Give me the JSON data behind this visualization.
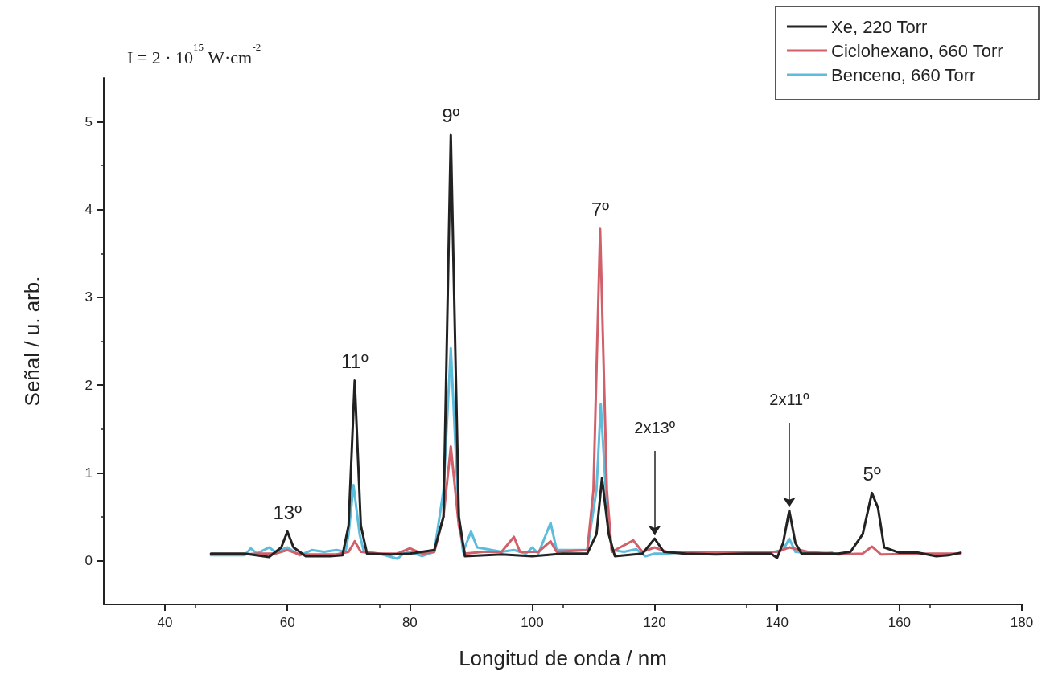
{
  "chart_data": {
    "type": "line",
    "xlabel": "Longitud de onda / nm",
    "ylabel": "Señal / u. arb.",
    "xlim": [
      30,
      180
    ],
    "xticks": [
      40,
      60,
      80,
      100,
      120,
      140,
      160,
      180
    ],
    "ylim": [
      -0.5,
      5.5
    ],
    "yticks": [
      0,
      1,
      2,
      3,
      4,
      5
    ],
    "grid": false,
    "legend": "top right",
    "marker": "none",
    "line_style": "solid",
    "annotations": [
      "I = 2 · 10$^{15}$ W·cm$^{-2}$",
      {
        "text": "13º",
        "x": 60,
        "y": 0.33
      },
      {
        "text": "11º",
        "x": 71,
        "y": 2.05
      },
      {
        "text": "9º",
        "x": 86.7,
        "y": 4.85
      },
      {
        "text": "7º",
        "x": 111.1,
        "y": 3.78
      },
      {
        "text": "5º",
        "x": 155.5,
        "y": 0.77
      },
      {
        "text": "2x13º",
        "x": 120,
        "y": 0.25
      },
      {
        "text": "2x11º",
        "x": 142,
        "y": 0.57
      }
    ],
    "series": [
      {
        "name": "Xe, 220 Torr",
        "color": "#222222",
        "x": [
          47.5,
          53,
          57,
          59,
          60,
          61,
          63,
          67,
          69,
          70,
          71,
          72,
          73,
          77,
          80,
          84,
          85.5,
          86.7,
          88,
          89,
          95,
          100,
          105,
          109,
          110.5,
          111.4,
          112.5,
          113.5,
          118,
          120,
          121.5,
          125,
          130,
          135,
          139,
          140,
          141,
          142,
          143,
          144,
          150,
          152,
          154,
          155.5,
          156.5,
          157.5,
          160,
          163,
          166,
          168,
          170
        ],
        "values": [
          0.08,
          0.08,
          0.04,
          0.15,
          0.33,
          0.15,
          0.05,
          0.05,
          0.06,
          0.4,
          2.05,
          0.4,
          0.08,
          0.07,
          0.08,
          0.12,
          0.5,
          4.85,
          0.5,
          0.05,
          0.07,
          0.05,
          0.08,
          0.08,
          0.3,
          0.94,
          0.3,
          0.05,
          0.08,
          0.25,
          0.1,
          0.08,
          0.07,
          0.08,
          0.08,
          0.03,
          0.2,
          0.57,
          0.2,
          0.08,
          0.08,
          0.1,
          0.3,
          0.77,
          0.6,
          0.15,
          0.09,
          0.09,
          0.05,
          0.06,
          0.09
        ]
      },
      {
        "name": "Ciclohexano, 660 Torr",
        "color": "#d0606a",
        "x": [
          53,
          55,
          58,
          60,
          62,
          68,
          70,
          71,
          72,
          75,
          78,
          80,
          82,
          84,
          85.5,
          86.7,
          88,
          89,
          92,
          95,
          97,
          98,
          101,
          103,
          104,
          109,
          110,
          111.1,
          112.2,
          113,
          116.5,
          118,
          120,
          122,
          130,
          140,
          142,
          145,
          150,
          154,
          155.5,
          157,
          165,
          170
        ],
        "values": [
          0.07,
          0.08,
          0.08,
          0.12,
          0.07,
          0.07,
          0.1,
          0.22,
          0.1,
          0.08,
          0.08,
          0.14,
          0.08,
          0.1,
          0.5,
          1.3,
          0.4,
          0.08,
          0.1,
          0.1,
          0.27,
          0.1,
          0.1,
          0.22,
          0.1,
          0.12,
          0.8,
          3.78,
          0.8,
          0.1,
          0.23,
          0.1,
          0.15,
          0.1,
          0.1,
          0.1,
          0.15,
          0.1,
          0.07,
          0.08,
          0.16,
          0.07,
          0.08,
          0.08
        ]
      },
      {
        "name": "Benceno, 660 Torr",
        "color": "#5bbcdc",
        "x": [
          47.5,
          53,
          54,
          55,
          57,
          58,
          60,
          62,
          64,
          66,
          68,
          69.5,
          70,
          70.8,
          71.8,
          72.5,
          75,
          77,
          78,
          79,
          80,
          82,
          84,
          85.5,
          86.7,
          88,
          88.7,
          90,
          91,
          95,
          97,
          99,
          100,
          101,
          103,
          104,
          109,
          110.5,
          111.2,
          112.2,
          113,
          115,
          117,
          118.5,
          120,
          122,
          125,
          130,
          135,
          138,
          141,
          142,
          143,
          146,
          149
        ],
        "values": [
          0.06,
          0.06,
          0.14,
          0.08,
          0.15,
          0.1,
          0.15,
          0.06,
          0.12,
          0.1,
          0.12,
          0.1,
          0.3,
          0.86,
          0.3,
          0.1,
          0.08,
          0.04,
          0.02,
          0.08,
          0.1,
          0.05,
          0.1,
          0.8,
          2.42,
          0.5,
          0.1,
          0.33,
          0.15,
          0.1,
          0.12,
          0.08,
          0.15,
          0.08,
          0.43,
          0.12,
          0.12,
          0.8,
          1.78,
          0.6,
          0.12,
          0.1,
          0.13,
          0.05,
          0.08,
          0.08,
          0.1,
          0.08,
          0.1,
          0.08,
          0.12,
          0.25,
          0.1,
          0.08,
          0.09
        ]
      }
    ]
  }
}
